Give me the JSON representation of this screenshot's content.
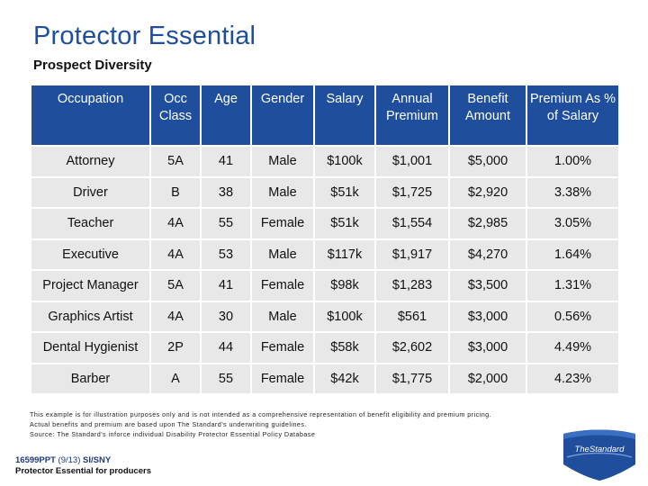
{
  "title": "Protector Essential",
  "subtitle": "Prospect Diversity",
  "table": {
    "headers": [
      "Occupation",
      "Occ Class",
      "Age",
      "Gender",
      "Salary",
      "Annual Premium",
      "Benefit Amount",
      "Premium As % of Salary"
    ],
    "rows": [
      [
        "Attorney",
        "5A",
        "41",
        "Male",
        "$100k",
        "$1,001",
        "$5,000",
        "1.00%"
      ],
      [
        "Driver",
        "B",
        "38",
        "Male",
        "$51k",
        "$1,725",
        "$2,920",
        "3.38%"
      ],
      [
        "Teacher",
        "4A",
        "55",
        "Female",
        "$51k",
        "$1,554",
        "$2,985",
        "3.05%"
      ],
      [
        "Executive",
        "4A",
        "53",
        "Male",
        "$117k",
        "$1,917",
        "$4,270",
        "1.64%"
      ],
      [
        "Project Manager",
        "5A",
        "41",
        "Female",
        "$98k",
        "$1,283",
        "$3,500",
        "1.31%"
      ],
      [
        "Graphics Artist",
        "4A",
        "30",
        "Male",
        "$100k",
        "$561",
        "$3,000",
        "0.56%"
      ],
      [
        "Dental Hygienist",
        "2P",
        "44",
        "Female",
        "$58k",
        "$2,602",
        "$3,000",
        "4.49%"
      ],
      [
        "Barber",
        "A",
        "55",
        "Female",
        "$42k",
        "$1,775",
        "$2,000",
        "4.23%"
      ]
    ]
  },
  "disclaimer": [
    "This example is for illustration purposes only and is not intended as a comprehensive representation of benefit eligibility and premium pricing.",
    "Actual benefits and premium are based upon The Standard's underwriting guidelines.",
    "Source: The Standard's inforce individual Disability Protector Essential Policy Database"
  ],
  "footer": {
    "code": "16599PPT",
    "date": "(9/13)",
    "dept": "SI/SNY",
    "product_line": "Protector Essential for producers"
  },
  "logo": {
    "text": "TheStandard",
    "name": "the-standard-logo"
  },
  "colors": {
    "brand_blue": "#1f4e9c",
    "cell_gray": "#e8e8e8"
  }
}
